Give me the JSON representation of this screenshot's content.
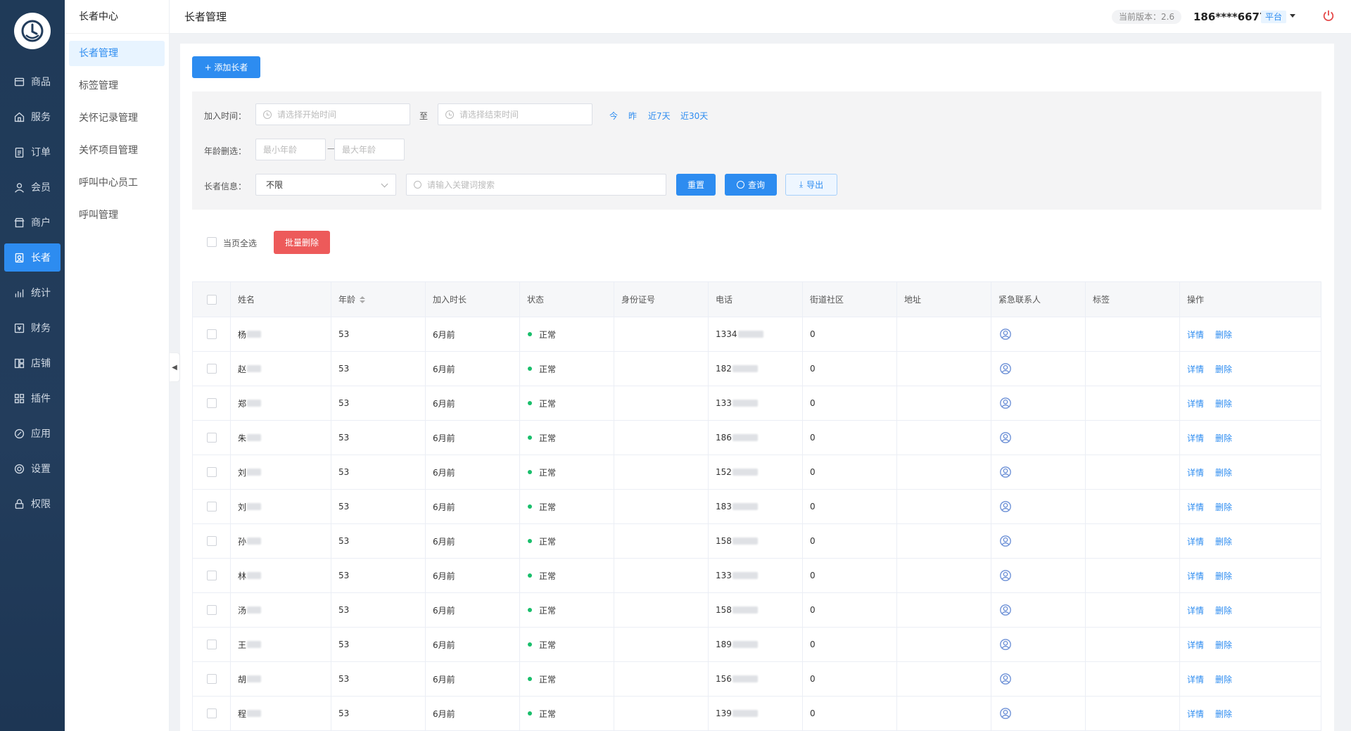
{
  "nav": {
    "items": [
      {
        "label": "商品",
        "icon": "box-icon"
      },
      {
        "label": "服务",
        "icon": "home-icon"
      },
      {
        "label": "订单",
        "icon": "clipboard-icon"
      },
      {
        "label": "会员",
        "icon": "user-icon"
      },
      {
        "label": "商户",
        "icon": "store-icon"
      },
      {
        "label": "长者",
        "icon": "elder-icon",
        "active": true
      },
      {
        "label": "统计",
        "icon": "bar-chart-icon"
      },
      {
        "label": "财务",
        "icon": "finance-icon"
      },
      {
        "label": "店铺",
        "icon": "shop-icon"
      },
      {
        "label": "插件",
        "icon": "grid-icon"
      },
      {
        "label": "应用",
        "icon": "link-icon"
      },
      {
        "label": "设置",
        "icon": "gear-icon"
      },
      {
        "label": "权限",
        "icon": "lock-icon"
      }
    ]
  },
  "submenu": {
    "title": "长者中心",
    "items": [
      "长者管理",
      "标签管理",
      "关怀记录管理",
      "关怀项目管理",
      "呼叫中心员工",
      "呼叫管理"
    ]
  },
  "header": {
    "title": "长者管理",
    "version": "当前版本：2.6",
    "phone": "186****6677",
    "platform": "平台"
  },
  "toolbar": {
    "add_label": "+ 添加长者"
  },
  "filter": {
    "join_time_label": "加入时间：",
    "start_placeholder": "请选择开始时间",
    "to_label": "至",
    "end_placeholder": "请选择结束时间",
    "quick": [
      "今",
      "昨",
      "近7天",
      "近30天"
    ],
    "age_label": "年龄删选：",
    "min_age_placeholder": "最小年龄",
    "age_sep": "—",
    "max_age_placeholder": "最大年龄",
    "info_label": "长者信息：",
    "info_select_value": "不限",
    "keyword_placeholder": "请输入关键词搜索",
    "reset_label": "重置",
    "query_label": "查询",
    "export_label": "导出"
  },
  "bulk": {
    "select_all_label": "当页全选",
    "delete_label": "批量删除"
  },
  "table": {
    "columns": [
      "姓名",
      "年龄",
      "加入时长",
      "状态",
      "身份证号",
      "电话",
      "街道社区",
      "地址",
      "紧急联系人",
      "标签",
      "操作"
    ],
    "detail_label": "详情",
    "delete_label": "删除",
    "rows": [
      {
        "name": "杨",
        "age": "53",
        "duration": "6月前",
        "status": "正常",
        "phone": "1334",
        "community": "0"
      },
      {
        "name": "赵",
        "age": "53",
        "duration": "6月前",
        "status": "正常",
        "phone": "182",
        "community": "0"
      },
      {
        "name": "郑",
        "age": "53",
        "duration": "6月前",
        "status": "正常",
        "phone": "133",
        "community": "0"
      },
      {
        "name": "朱",
        "age": "53",
        "duration": "6月前",
        "status": "正常",
        "phone": "186",
        "community": "0"
      },
      {
        "name": "刘",
        "age": "53",
        "duration": "6月前",
        "status": "正常",
        "phone": "152",
        "community": "0"
      },
      {
        "name": "刘",
        "age": "53",
        "duration": "6月前",
        "status": "正常",
        "phone": "183",
        "community": "0"
      },
      {
        "name": "孙",
        "age": "53",
        "duration": "6月前",
        "status": "正常",
        "phone": "158",
        "community": "0"
      },
      {
        "name": "林",
        "age": "53",
        "duration": "6月前",
        "status": "正常",
        "phone": "133",
        "community": "0"
      },
      {
        "name": "汤",
        "age": "53",
        "duration": "6月前",
        "status": "正常",
        "phone": "158",
        "community": "0"
      },
      {
        "name": "王",
        "age": "53",
        "duration": "6月前",
        "status": "正常",
        "phone": "189",
        "community": "0"
      },
      {
        "name": "胡",
        "age": "53",
        "duration": "6月前",
        "status": "正常",
        "phone": "156",
        "community": "0"
      },
      {
        "name": "程",
        "age": "53",
        "duration": "6月前",
        "status": "正常",
        "phone": "139",
        "community": "0"
      }
    ]
  },
  "colors": {
    "primary": "#2d8cf0",
    "danger": "#ed5a5a",
    "nav_bg": "#1f3a58",
    "status_ok": "#19be6b"
  }
}
